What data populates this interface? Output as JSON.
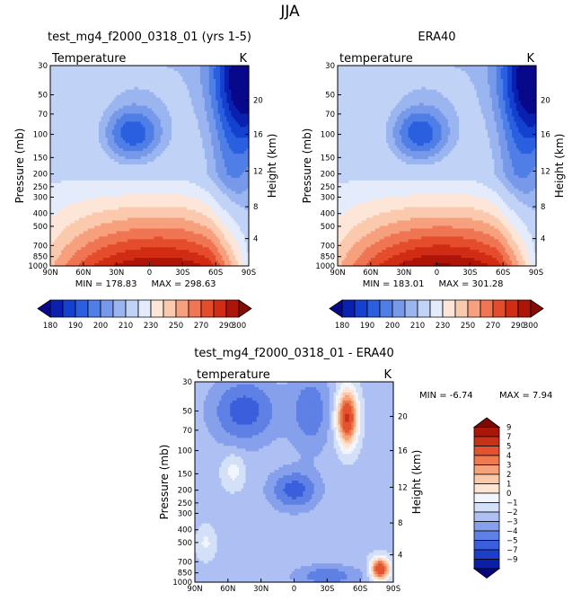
{
  "figure_title": "JJA",
  "colors": {
    "temp_levels": [
      "#08088a",
      "#0a20b0",
      "#1541d0",
      "#2a5fe0",
      "#4f7fe6",
      "#7799ea",
      "#9bb5f0",
      "#c0d2f6",
      "#e4ecfb",
      "#fde6d8",
      "#fbc9ad",
      "#f6a07e",
      "#ef7553",
      "#e44d2c",
      "#d02d14",
      "#ae1509",
      "#860a05"
    ],
    "diff_levels": [
      "#05057d",
      "#0b1ea8",
      "#1c3ec9",
      "#3b5fdc",
      "#5f80e5",
      "#86a0ec",
      "#aec0f3",
      "#d4e0f8",
      "#f2f5fd",
      "#fde5d2",
      "#fbc8a8",
      "#f6a27a",
      "#ee7a50",
      "#e2542f",
      "#ca3217",
      "#a81707",
      "#7e0904"
    ]
  },
  "chart_data": [
    {
      "type": "heatmap",
      "title": "test_mg4_f2000_0318_01 (yrs 1-5)",
      "label_left": "Temperature",
      "label_right": "K",
      "ylabel": "Pressure (mb)",
      "ylabel_right": "Height (km)",
      "x_ticks": [
        "90N",
        "60N",
        "30N",
        "0",
        "30S",
        "60S",
        "90S"
      ],
      "y_ticks": [
        "30",
        "50",
        "70",
        "100",
        "150",
        "200",
        "250",
        "300",
        "400",
        "500",
        "700",
        "850",
        "1000"
      ],
      "y_ticks_right": [
        "20",
        "16",
        "12",
        "8",
        "4"
      ],
      "xlim": [
        90,
        -90
      ],
      "ylim": [
        1000,
        30
      ],
      "y_log": true,
      "min_label": "MIN = 178.83",
      "max_label": "MAX = 298.63",
      "colorbar": {
        "levels": [
          180,
          185,
          190,
          195,
          200,
          205,
          210,
          220,
          230,
          240,
          250,
          260,
          270,
          280,
          290,
          300
        ],
        "labels": [
          "180",
          "190",
          "200",
          "210",
          "230",
          "250",
          "270",
          "290",
          "300"
        ]
      }
    },
    {
      "type": "heatmap",
      "title": "ERA40",
      "label_left": "temperature",
      "label_right": "K",
      "ylabel": "Pressure (mb)",
      "ylabel_right": "Height (km)",
      "x_ticks": [
        "90N",
        "60N",
        "30N",
        "0",
        "30S",
        "60S",
        "90S"
      ],
      "y_ticks": [
        "30",
        "50",
        "70",
        "100",
        "150",
        "200",
        "250",
        "300",
        "400",
        "500",
        "700",
        "850",
        "1000"
      ],
      "y_ticks_right": [
        "20",
        "16",
        "12",
        "8",
        "4"
      ],
      "xlim": [
        90,
        -90
      ],
      "ylim": [
        1000,
        30
      ],
      "y_log": true,
      "min_label": "MIN = 183.01",
      "max_label": "MAX = 301.28",
      "colorbar": {
        "levels": [
          180,
          185,
          190,
          195,
          200,
          205,
          210,
          220,
          230,
          240,
          250,
          260,
          270,
          280,
          290,
          300
        ],
        "labels": [
          "180",
          "190",
          "200",
          "210",
          "230",
          "250",
          "270",
          "290",
          "300"
        ]
      }
    },
    {
      "type": "heatmap",
      "title": "test_mg4_f2000_0318_01 - ERA40",
      "label_left": "temperature",
      "label_right": "K",
      "ylabel": "Pressure (mb)",
      "ylabel_right": "Height (km)",
      "x_ticks": [
        "90N",
        "60N",
        "30N",
        "0",
        "30S",
        "60S",
        "90S"
      ],
      "y_ticks": [
        "30",
        "50",
        "70",
        "100",
        "150",
        "200",
        "250",
        "300",
        "400",
        "500",
        "700",
        "850",
        "1000"
      ],
      "y_ticks_right": [
        "20",
        "16",
        "12",
        "8",
        "4"
      ],
      "xlim": [
        90,
        -90
      ],
      "ylim": [
        1000,
        30
      ],
      "y_log": true,
      "min_label": "MIN =  -6.74",
      "max_label": "MAX =   7.94",
      "colorbar": {
        "orientation": "vertical",
        "labels": [
          "9",
          "7",
          "5",
          "4",
          "3",
          "2",
          "1",
          "0",
          "−1",
          "−2",
          "−3",
          "−4",
          "−5",
          "−7",
          "−9"
        ]
      }
    }
  ]
}
